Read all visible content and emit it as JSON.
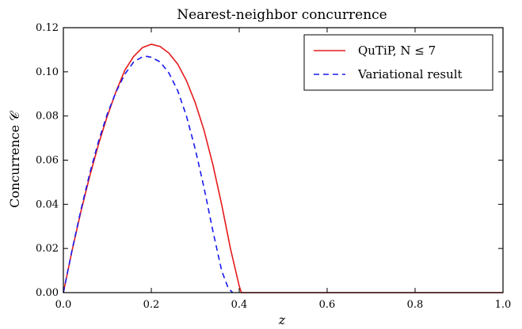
{
  "chart_data": {
    "type": "line",
    "title": "Nearest-neighbor concurrence",
    "xlabel": "z",
    "ylabel": "Concurrence 𝒞",
    "xlim": [
      0.0,
      1.0
    ],
    "ylim": [
      0.0,
      0.12
    ],
    "xticks": [
      "0.0",
      "0.2",
      "0.4",
      "0.6",
      "0.8",
      "1.0"
    ],
    "yticks": [
      "0.00",
      "0.02",
      "0.04",
      "0.06",
      "0.08",
      "0.10",
      "0.12"
    ],
    "xtick_values": [
      0.0,
      0.2,
      0.4,
      0.6,
      0.8,
      1.0
    ],
    "ytick_values": [
      0.0,
      0.02,
      0.04,
      0.06,
      0.08,
      0.1,
      0.12
    ],
    "grid": false,
    "legend_position": "top-right",
    "series": [
      {
        "name": "QuTiP, N ≤ 7",
        "color": "#e41a1c",
        "style": "solid",
        "x": [
          0.0,
          0.02,
          0.04,
          0.06,
          0.08,
          0.1,
          0.12,
          0.14,
          0.16,
          0.18,
          0.2,
          0.22,
          0.24,
          0.26,
          0.28,
          0.3,
          0.32,
          0.34,
          0.36,
          0.38,
          0.4,
          0.405,
          0.45,
          0.5,
          0.6,
          0.7,
          0.8,
          0.9,
          1.0
        ],
        "y": [
          0.0,
          0.0192,
          0.0368,
          0.0528,
          0.0672,
          0.08,
          0.0912,
          0.1008,
          0.107,
          0.111,
          0.1125,
          0.1115,
          0.1085,
          0.1035,
          0.096,
          0.086,
          0.0735,
          0.058,
          0.04,
          0.02,
          0.003,
          0.0,
          0.0,
          0.0,
          0.0,
          0.0,
          0.0,
          0.0,
          0.0
        ]
      },
      {
        "name": "Variational result",
        "color": "#1a1aee",
        "style": "dashed",
        "x": [
          0.0,
          0.02,
          0.04,
          0.06,
          0.08,
          0.1,
          0.12,
          0.14,
          0.16,
          0.18,
          0.19,
          0.2,
          0.22,
          0.24,
          0.26,
          0.28,
          0.3,
          0.32,
          0.34,
          0.36,
          0.375,
          0.385
        ],
        "y": [
          0.0,
          0.0195,
          0.0375,
          0.054,
          0.0685,
          0.081,
          0.091,
          0.099,
          0.1045,
          0.1068,
          0.107,
          0.1066,
          0.1045,
          0.0995,
          0.0915,
          0.08,
          0.065,
          0.0475,
          0.028,
          0.01,
          0.002,
          0.0
        ]
      }
    ]
  }
}
